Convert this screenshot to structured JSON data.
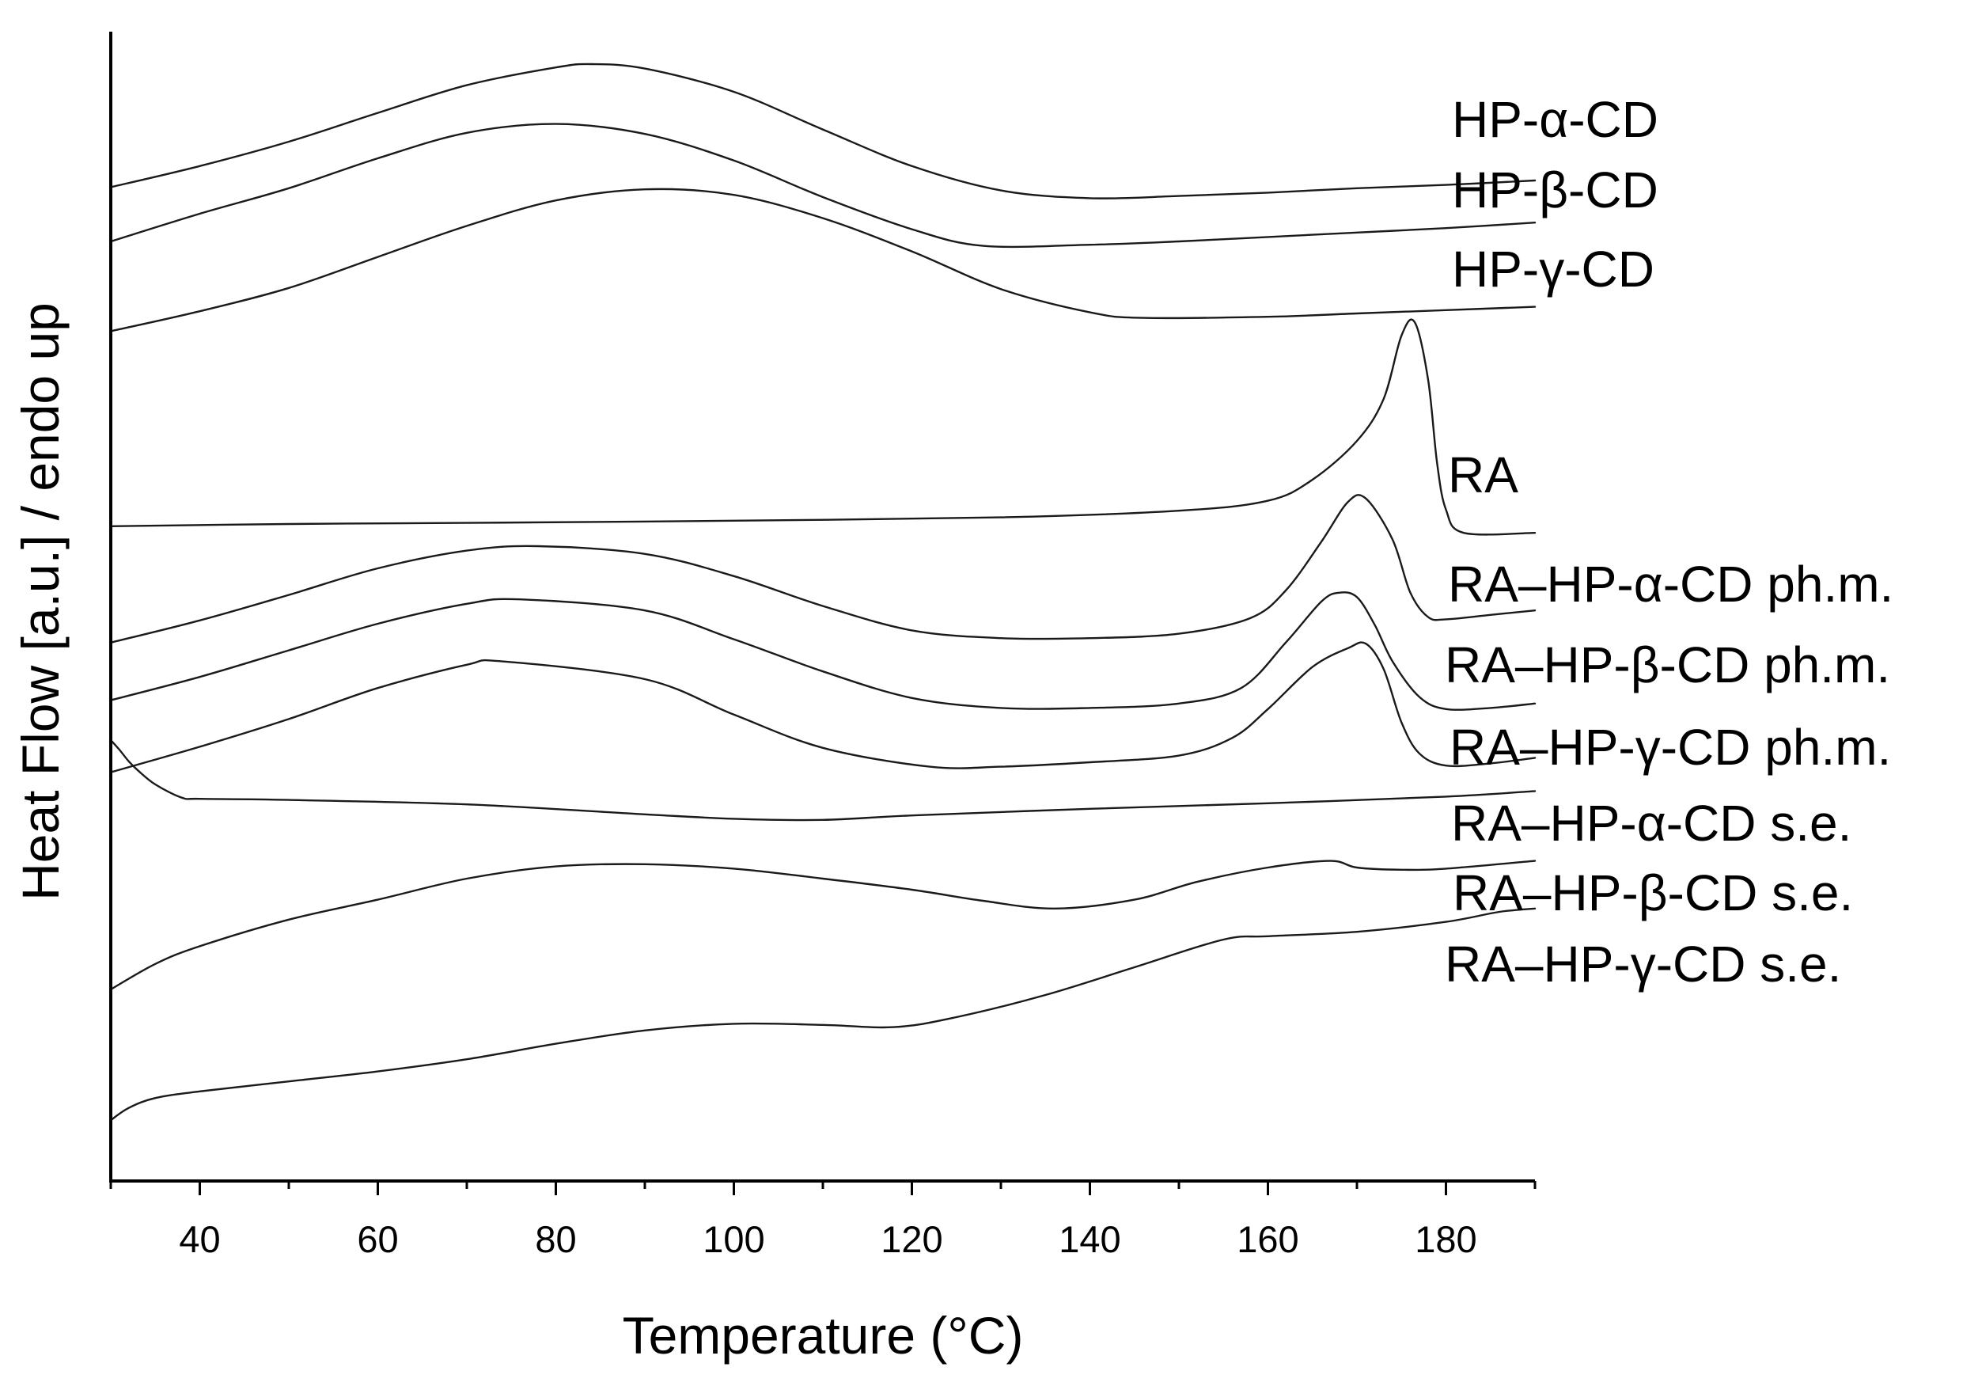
{
  "chart_data": {
    "type": "line",
    "title": "",
    "xlabel": "Temperature (°C)",
    "ylabel": "Heat Flow [a.u.] / endo up",
    "xlim": [
      30,
      190
    ],
    "ylim": [
      0,
      100
    ],
    "x_ticks": [
      40,
      60,
      80,
      100,
      120,
      140,
      160,
      180
    ],
    "x_tick_labels": [
      "40",
      "60",
      "80",
      "100",
      "120",
      "140",
      "160",
      "180"
    ],
    "y_tick_labels_shown": false,
    "legend": "inline labels at right of each curve",
    "series": [
      {
        "name": "HP-α-CD",
        "label": "HP-α-CD",
        "x": [
          30,
          40,
          50,
          60,
          70,
          80,
          84,
          90,
          100,
          110,
          120,
          130,
          140,
          150,
          160,
          170,
          180,
          190
        ],
        "y": [
          87.4,
          89.3,
          91.5,
          94.1,
          96.6,
          98.2,
          98.5,
          98.1,
          96.0,
          92.6,
          89.3,
          87.1,
          86.4,
          86.6,
          86.9,
          87.3,
          87.6,
          88.0
        ]
      },
      {
        "name": "HP-β-CD",
        "label": "HP-β-CD",
        "x": [
          30,
          40,
          50,
          60,
          70,
          80,
          90,
          100,
          110,
          120,
          128,
          140,
          150,
          160,
          170,
          180,
          190
        ],
        "y": [
          82.5,
          85.0,
          87.3,
          90.0,
          92.3,
          93.1,
          92.2,
          89.8,
          86.5,
          83.6,
          82.1,
          82.2,
          82.5,
          82.9,
          83.3,
          83.7,
          84.2
        ]
      },
      {
        "name": "HP-γ-CD",
        "label": "HP-γ-CD",
        "x": [
          30,
          40,
          50,
          60,
          70,
          80,
          90,
          100,
          110,
          120,
          130,
          140,
          146,
          160,
          170,
          180,
          190
        ],
        "y": [
          74.4,
          76.2,
          78.3,
          81.1,
          83.9,
          86.2,
          87.2,
          86.7,
          84.6,
          81.6,
          78.2,
          76.1,
          75.6,
          75.7,
          76.0,
          76.3,
          76.6
        ]
      },
      {
        "name": "RA",
        "label": "RA",
        "x": [
          30,
          50,
          70,
          100,
          130,
          150,
          160,
          165,
          170,
          173,
          175,
          176.5,
          178,
          179,
          180,
          182,
          190
        ],
        "y": [
          56.8,
          57.0,
          57.1,
          57.3,
          57.6,
          58.2,
          59.1,
          61.0,
          64.5,
          68.3,
          74.0,
          75.2,
          70.0,
          62.5,
          58.3,
          56.2,
          56.2
        ]
      },
      {
        "name": "RA–HP-α-CD ph.m.",
        "label": "RA–HP-α-CD ph.m.",
        "x": [
          30,
          40,
          50,
          60,
          70,
          78,
          90,
          100,
          110,
          120,
          130,
          140,
          150,
          158,
          162,
          166,
          169,
          171,
          174,
          176,
          178,
          180,
          185,
          190
        ],
        "y": [
          46.3,
          48.3,
          50.6,
          53.0,
          54.6,
          55.0,
          54.3,
          52.3,
          49.6,
          47.4,
          46.7,
          46.7,
          47.1,
          48.5,
          51.0,
          55.4,
          59.0,
          59.3,
          55.6,
          50.8,
          48.6,
          48.4,
          48.8,
          49.2
        ]
      },
      {
        "name": "RA–HP-β-CD ph.m.",
        "label": "RA–HP-β-CD ph.m.",
        "x": [
          30,
          40,
          50,
          60,
          70,
          76,
          90,
          100,
          110,
          120,
          130,
          140,
          150,
          157,
          162,
          166,
          168,
          170,
          172,
          174,
          177,
          180,
          185,
          190
        ],
        "y": [
          41.1,
          43.2,
          45.6,
          48.0,
          49.8,
          50.2,
          49.2,
          46.6,
          43.7,
          41.3,
          40.4,
          40.4,
          40.8,
          42.2,
          46.3,
          50.0,
          50.8,
          50.4,
          47.9,
          44.6,
          41.4,
          40.3,
          40.4,
          40.8
        ]
      },
      {
        "name": "RA–HP-γ-CD ph.m.",
        "label": "RA–HP-γ-CD ph.m.",
        "x": [
          30,
          40,
          50,
          60,
          70,
          74,
          90,
          100,
          110,
          122,
          130,
          140,
          150,
          156,
          160,
          165,
          169,
          171,
          173,
          175,
          177,
          180,
          185,
          190
        ],
        "y": [
          34.6,
          36.9,
          39.4,
          42.2,
          44.3,
          44.6,
          43.0,
          39.8,
          36.8,
          35.1,
          35.1,
          35.5,
          36.1,
          37.7,
          40.3,
          44.1,
          45.8,
          46.2,
          43.9,
          39.1,
          36.3,
          35.2,
          35.4,
          35.9
        ]
      },
      {
        "name": "RA–HP-α-CD s.e.",
        "label": "RA–HP-α-CD s.e.",
        "x": [
          30,
          31,
          32,
          33,
          35,
          38,
          40,
          50,
          70,
          90,
          100,
          110,
          120,
          140,
          160,
          180,
          190
        ],
        "y": [
          37.5,
          36.6,
          35.6,
          34.8,
          33.5,
          32.3,
          32.2,
          32.1,
          31.7,
          30.8,
          30.4,
          30.3,
          30.7,
          31.3,
          31.8,
          32.4,
          32.9
        ]
      },
      {
        "name": "RA–HP-β-CD s.e.",
        "label": "RA–HP-β-CD s.e.",
        "x": [
          30,
          35,
          40,
          50,
          60,
          70,
          80,
          90,
          100,
          110,
          120,
          128,
          136,
          145,
          152,
          160,
          167,
          170,
          175,
          180,
          190
        ],
        "y": [
          15.0,
          17.3,
          18.9,
          21.3,
          23.1,
          25.0,
          26.1,
          26.3,
          25.9,
          25.0,
          24.0,
          23.0,
          22.3,
          23.1,
          24.7,
          26.0,
          26.6,
          26.0,
          25.8,
          25.9,
          26.6
        ]
      },
      {
        "name": "RA–HP-γ-CD s.e.",
        "label": "RA–HP-γ-CD s.e.",
        "x": [
          30,
          32,
          35,
          40,
          50,
          60,
          70,
          80,
          90,
          100,
          110,
          118,
          125,
          135,
          145,
          155,
          160,
          170,
          180,
          186,
          190
        ],
        "y": [
          3.2,
          4.3,
          5.2,
          5.8,
          6.7,
          7.6,
          8.7,
          10.1,
          11.3,
          11.9,
          11.8,
          11.6,
          12.5,
          14.5,
          17.0,
          19.5,
          19.8,
          20.2,
          21.1,
          22.0,
          22.3
        ]
      }
    ]
  }
}
